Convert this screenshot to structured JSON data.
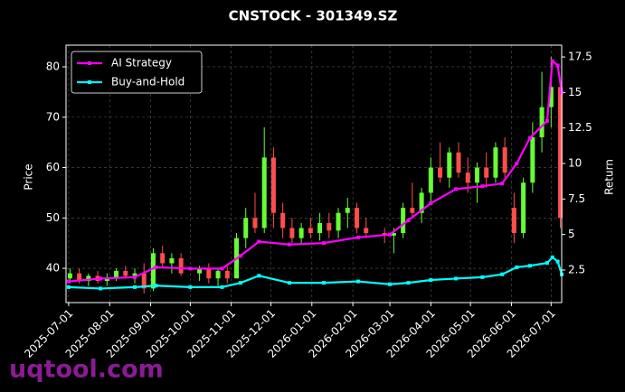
{
  "chart_data": {
    "type": "candlestick",
    "title": "CNSTOCK - 301349.SZ",
    "ylabel": "Price",
    "y2label": "Return",
    "watermark": "uqtool.com",
    "grid": true,
    "legend": "upper left",
    "xlim": [
      "2025-06-29",
      "2026-07-09"
    ],
    "xticks": [
      "2025-07-01",
      "2025-08-01",
      "2025-09-01",
      "2025-10-01",
      "2025-11-01",
      "2025-12-01",
      "2026-01-01",
      "2026-02-01",
      "2026-03-01",
      "2026-04-01",
      "2026-05-01",
      "2026-06-01",
      "2026-07-01"
    ],
    "ylim": [
      33.2,
      84.3
    ],
    "yticks": [
      40,
      50,
      60,
      70,
      80
    ],
    "y2lim": [
      0.21,
      18.33
    ],
    "y2ticks": [
      2.5,
      5.0,
      7.5,
      10.0,
      12.5,
      15.0,
      17.5
    ],
    "up_color": "#66ff33",
    "down_color": "#ff4d4d",
    "x": [
      "2025-07-02",
      "2025-07-09",
      "2025-07-16",
      "2025-07-23",
      "2025-07-30",
      "2025-08-06",
      "2025-08-13",
      "2025-08-20",
      "2025-08-27",
      "2025-09-03",
      "2025-09-10",
      "2025-09-17",
      "2025-09-24",
      "2025-10-08",
      "2025-10-15",
      "2025-10-22",
      "2025-10-29",
      "2025-11-05",
      "2025-11-12",
      "2025-11-19",
      "2025-11-26",
      "2025-12-03",
      "2025-12-10",
      "2025-12-17",
      "2025-12-24",
      "2025-12-31",
      "2026-01-07",
      "2026-01-14",
      "2026-01-21",
      "2026-01-28",
      "2026-02-04",
      "2026-02-11",
      "2026-02-25",
      "2026-03-04",
      "2026-03-11",
      "2026-03-18",
      "2026-03-25",
      "2026-04-01",
      "2026-04-08",
      "2026-04-15",
      "2026-04-22",
      "2026-04-29",
      "2026-05-06",
      "2026-05-13",
      "2026-05-20",
      "2026-05-27",
      "2026-06-03",
      "2026-06-10",
      "2026-06-17",
      "2026-06-24",
      "2026-07-01",
      "2026-07-08"
    ],
    "open": [
      38,
      39,
      37.5,
      38.5,
      37.5,
      38,
      39.5,
      38.5,
      39,
      36,
      43,
      41,
      42,
      39,
      40,
      38,
      39.5,
      38,
      46,
      50,
      48,
      62,
      51,
      48,
      46,
      48,
      47,
      49,
      47.5,
      51,
      52,
      48,
      47,
      46.5,
      47,
      52,
      51,
      55,
      60,
      58,
      63,
      59,
      57,
      60,
      58,
      64,
      52,
      47,
      57,
      66,
      72,
      76
    ],
    "high": [
      40,
      40,
      39,
      39.5,
      39,
      40,
      40.5,
      40,
      41,
      44,
      44.5,
      43,
      43,
      40.5,
      41,
      40,
      41,
      47,
      52,
      55,
      68,
      64,
      53,
      50,
      49,
      50,
      51,
      51,
      52,
      54,
      53,
      50,
      48,
      48,
      53,
      57,
      56,
      62,
      65,
      64,
      65,
      62,
      61,
      63,
      65,
      66,
      55,
      58,
      69,
      79,
      82,
      77
    ],
    "low": [
      37,
      37,
      36.5,
      37,
      36.5,
      37.5,
      38,
      37,
      35,
      35.5,
      40,
      39,
      38.5,
      37.5,
      37,
      36.5,
      37,
      38,
      44,
      47,
      47,
      48,
      46,
      45,
      45,
      46,
      45.5,
      46,
      46,
      48,
      47,
      46,
      45,
      43,
      46,
      50,
      49,
      53,
      57,
      56,
      58,
      55,
      53,
      56,
      57,
      58,
      45,
      46,
      55,
      63,
      68,
      48
    ],
    "close": [
      39,
      37.5,
      38.5,
      37.5,
      38,
      39.5,
      38.5,
      39,
      36,
      43,
      41,
      42,
      39,
      40,
      38,
      39.5,
      38,
      46,
      50,
      48,
      62,
      51,
      48,
      46,
      48,
      47,
      49,
      47.5,
      51,
      52,
      48,
      47,
      46.5,
      47,
      52,
      51,
      55,
      60,
      58,
      63,
      59,
      57,
      60,
      58,
      64,
      59,
      47,
      57,
      66,
      72,
      76,
      50
    ],
    "series": [
      {
        "name": "AI Strategy",
        "color": "#ff00ff",
        "axis": "y2",
        "x": [
          "2025-07-01",
          "2025-07-25",
          "2025-08-20",
          "2025-09-05",
          "2025-10-01",
          "2025-10-25",
          "2025-11-08",
          "2025-11-22",
          "2025-12-15",
          "2026-01-10",
          "2026-02-05",
          "2026-03-01",
          "2026-03-15",
          "2026-04-01",
          "2026-04-20",
          "2026-05-10",
          "2026-05-25",
          "2026-06-05",
          "2026-06-15",
          "2026-06-28",
          "2026-07-02",
          "2026-07-06",
          "2026-07-09"
        ],
        "values": [
          1.7,
          1.9,
          2.0,
          2.7,
          2.6,
          2.6,
          3.5,
          4.5,
          4.3,
          4.4,
          4.8,
          5.0,
          6.0,
          7.2,
          8.2,
          8.4,
          8.6,
          10.0,
          11.8,
          13.0,
          17.2,
          16.9,
          15.0
        ]
      },
      {
        "name": "Buy-and-Hold",
        "color": "#00ffff",
        "axis": "y2",
        "x": [
          "2025-07-01",
          "2025-07-25",
          "2025-08-20",
          "2025-09-05",
          "2025-10-01",
          "2025-10-25",
          "2025-11-08",
          "2025-11-22",
          "2025-12-15",
          "2026-01-10",
          "2026-02-05",
          "2026-03-01",
          "2026-03-15",
          "2026-04-01",
          "2026-04-20",
          "2026-05-10",
          "2026-05-25",
          "2026-06-05",
          "2026-06-15",
          "2026-06-28",
          "2026-07-02",
          "2026-07-06",
          "2026-07-09"
        ],
        "values": [
          1.3,
          1.2,
          1.3,
          1.4,
          1.3,
          1.3,
          1.6,
          2.1,
          1.6,
          1.6,
          1.7,
          1.5,
          1.6,
          1.8,
          1.9,
          2.0,
          2.2,
          2.7,
          2.8,
          3.0,
          3.4,
          3.1,
          2.2
        ]
      }
    ]
  }
}
